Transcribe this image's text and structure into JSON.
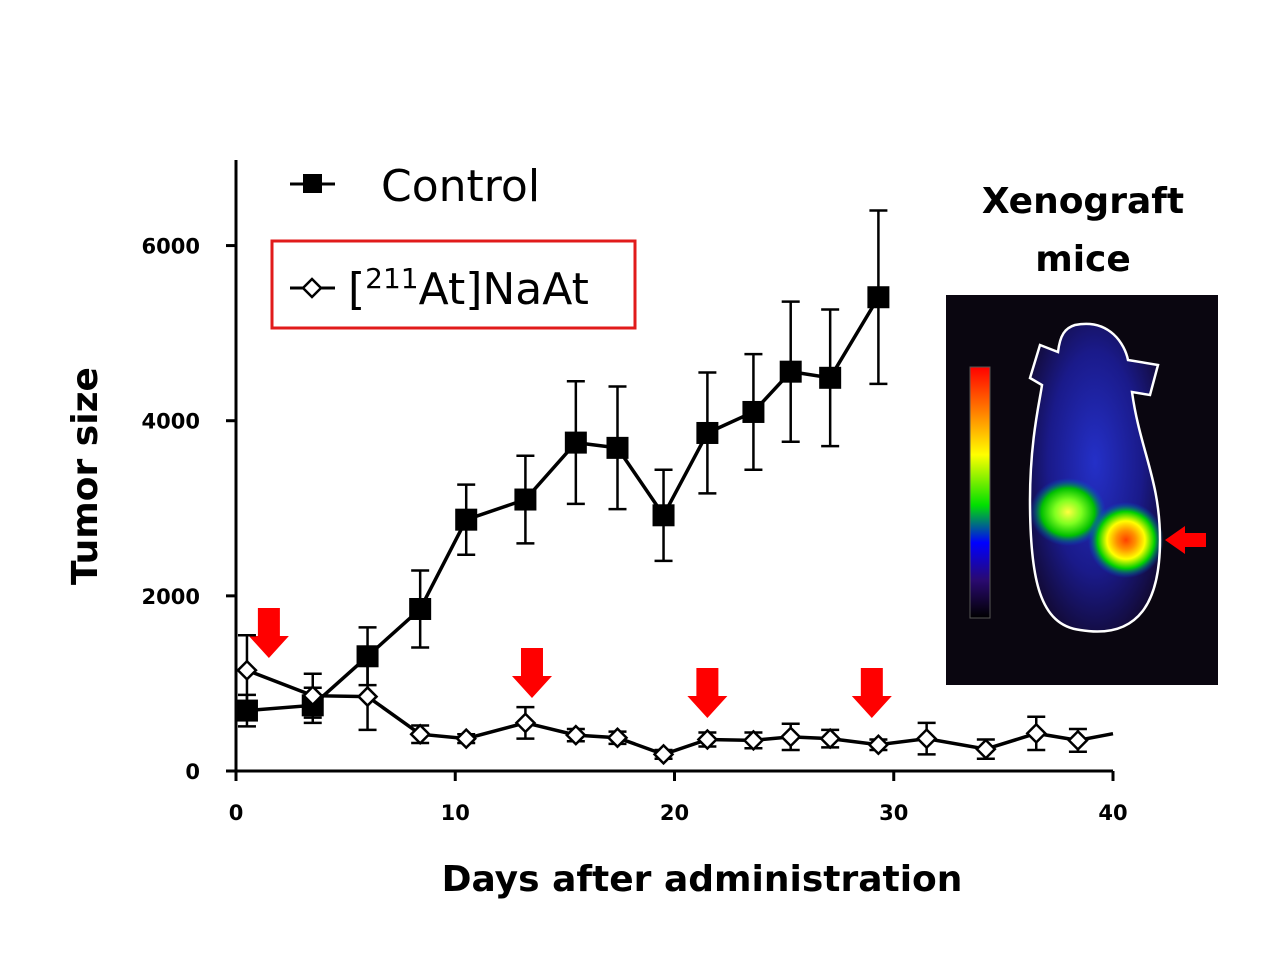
{
  "chart_data": {
    "type": "line",
    "xlabel": "Days after administration",
    "ylabel": "Tumor size",
    "xlim": [
      0,
      40
    ],
    "ylim": [
      0,
      7000
    ],
    "xticks": [
      "0",
      "10",
      "20",
      "30",
      "40"
    ],
    "yticks": [
      "0",
      "2000",
      "4000",
      "6000"
    ],
    "grid": false,
    "legend_placement": "top-left",
    "legend": {
      "control": "Control",
      "treated_pre": "[",
      "treated_sup": "211",
      "treated_post": "At]NaAt"
    },
    "series": [
      {
        "name": "Control",
        "marker": "filled-square",
        "color": "#000000",
        "x": [
          0.5,
          3.5,
          6,
          8.4,
          10.5,
          13.2,
          15.5,
          17.4,
          19.5,
          21.5,
          23.6,
          25.3,
          27.1,
          29.3
        ],
        "y": [
          690,
          750,
          1310,
          1850,
          2870,
          3100,
          3750,
          3690,
          2920,
          3860,
          4100,
          4560,
          4490,
          5410
        ],
        "err": [
          180,
          200,
          330,
          440,
          400,
          500,
          700,
          700,
          520,
          690,
          660,
          800,
          780,
          990
        ]
      },
      {
        "name": "[211At]NaAt",
        "marker": "open-diamond",
        "color": "#000000",
        "x": [
          0.5,
          3.5,
          6,
          8.4,
          10.5,
          13.2,
          15.5,
          17.4,
          19.5,
          21.5,
          23.6,
          25.3,
          27.1,
          29.3,
          31.5,
          34.2,
          36.5,
          38.4,
          40.5
        ],
        "y": [
          1150,
          860,
          850,
          420,
          370,
          550,
          410,
          380,
          190,
          360,
          350,
          390,
          370,
          300,
          370,
          250,
          430,
          350,
          450
        ],
        "err": [
          400,
          250,
          380,
          100,
          50,
          180,
          70,
          70,
          50,
          80,
          90,
          150,
          100,
          60,
          180,
          110,
          190,
          130,
          0
        ]
      }
    ],
    "annotations": {
      "dose_arrows_days": [
        1.5,
        13.5,
        21.5,
        29
      ],
      "arrow_color": "#ff0000"
    }
  },
  "inset": {
    "title_line1": "Xenograft",
    "title_line2": "mice",
    "arrow_color": "#ff0000"
  }
}
